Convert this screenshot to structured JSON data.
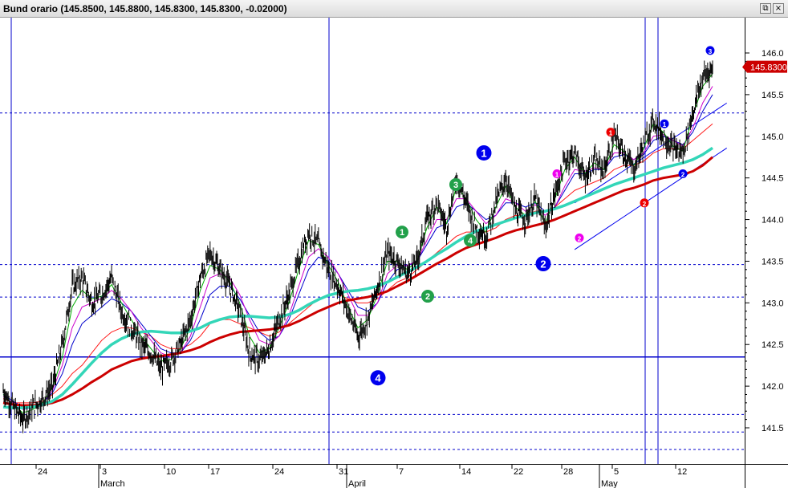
{
  "window": {
    "title": "Bund orario (145.8500, 145.8800, 145.8300, 145.8300, -0.02000)",
    "restore_icon": "restore-window-icon",
    "close_icon": "close-window-icon"
  },
  "chart_data": {
    "type": "line",
    "title": "Bund orario (145.8500, 145.8800, 145.8300, 145.8300, -0.02000)",
    "ylim": [
      141.3,
      146.3
    ],
    "y_ticks": [
      "141.5",
      "142.0",
      "142.5",
      "143.0",
      "143.5",
      "144.0",
      "144.5",
      "145.0",
      "145.5",
      "146.0"
    ],
    "x_day_labels": [
      "24",
      "3",
      "10",
      "17",
      "24",
      "31",
      "7",
      "14",
      "22",
      "28",
      "5",
      "12"
    ],
    "x_month_labels": [
      "March",
      "April",
      "May"
    ],
    "last_price": "145.8300",
    "grid": false,
    "price_series": {
      "name": "",
      "close": [
        141.95,
        141.75,
        141.6,
        141.75,
        141.85,
        142.0,
        142.5,
        143.2,
        143.3,
        143.0,
        143.1,
        143.3,
        142.9,
        142.7,
        142.5,
        142.4,
        142.2,
        142.3,
        142.5,
        142.8,
        143.3,
        143.6,
        143.4,
        143.2,
        142.9,
        142.4,
        142.3,
        142.45,
        142.8,
        143.1,
        143.5,
        143.85,
        143.7,
        143.4,
        143.2,
        142.9,
        142.6,
        142.8,
        143.2,
        143.6,
        143.5,
        143.35,
        143.5,
        144.0,
        144.2,
        143.9,
        144.5,
        144.2,
        143.9,
        143.8,
        144.2,
        144.5,
        144.1,
        144.0,
        144.25,
        143.9,
        144.3,
        144.7,
        144.8,
        144.5,
        144.7,
        144.6,
        145.0,
        144.8,
        144.6,
        144.9,
        145.2,
        145.0,
        144.85,
        144.8,
        145.3,
        145.7,
        145.83
      ]
    },
    "moving_averages": [
      {
        "name": "",
        "color": "#ff1a1a",
        "values": [
          141.85,
          141.8,
          141.8,
          141.8,
          141.82,
          141.9,
          142.0,
          142.15,
          142.25,
          142.4,
          142.55,
          142.65,
          142.7,
          142.7,
          142.65,
          142.6,
          142.5,
          142.45,
          142.45,
          142.5,
          142.6,
          142.75,
          142.8,
          142.8,
          142.75,
          142.7,
          142.65,
          142.6,
          142.65,
          142.75,
          142.85,
          142.95,
          143.05,
          143.1,
          143.1,
          143.05,
          143.0,
          143.0,
          143.05,
          143.15,
          143.25,
          143.3,
          143.4,
          143.5,
          143.6,
          143.7,
          143.8,
          143.85,
          143.85,
          143.85,
          143.9,
          144.0,
          144.05,
          144.05,
          144.1,
          144.1,
          144.15,
          144.25,
          144.35,
          144.4,
          144.45,
          144.5,
          144.6,
          144.65,
          144.65,
          144.7,
          144.8,
          144.85,
          144.85,
          144.85,
          144.95,
          145.05,
          145.15
        ]
      },
      {
        "name": "",
        "color": "#0000cc",
        "values": [
          141.9,
          141.82,
          141.75,
          141.75,
          141.8,
          141.92,
          142.15,
          142.5,
          142.75,
          142.85,
          142.95,
          143.05,
          143.0,
          142.9,
          142.75,
          142.6,
          142.45,
          142.4,
          142.4,
          142.55,
          142.8,
          143.1,
          143.2,
          143.2,
          143.05,
          142.85,
          142.65,
          142.55,
          142.6,
          142.8,
          143.1,
          143.4,
          143.55,
          143.5,
          143.35,
          143.15,
          142.95,
          142.9,
          143.0,
          143.25,
          143.4,
          143.45,
          143.5,
          143.7,
          143.9,
          143.95,
          144.15,
          144.2,
          144.1,
          144.0,
          144.05,
          144.2,
          144.2,
          144.15,
          144.2,
          144.1,
          144.15,
          144.35,
          144.55,
          144.55,
          144.6,
          144.6,
          144.75,
          144.78,
          144.72,
          144.78,
          144.95,
          145.0,
          144.95,
          144.9,
          145.05,
          145.3,
          145.5
        ]
      },
      {
        "name": "",
        "color": "#cc00cc",
        "values": [
          141.88,
          141.8,
          141.72,
          141.74,
          141.8,
          141.95,
          142.25,
          142.7,
          142.95,
          143.0,
          143.05,
          143.15,
          143.05,
          142.9,
          142.7,
          142.55,
          142.4,
          142.35,
          142.4,
          142.6,
          142.95,
          143.3,
          143.35,
          143.3,
          143.1,
          142.8,
          142.55,
          142.5,
          142.6,
          142.85,
          143.2,
          143.55,
          143.65,
          143.55,
          143.35,
          143.1,
          142.85,
          142.85,
          143.0,
          143.35,
          143.45,
          143.45,
          143.5,
          143.75,
          144.0,
          144.0,
          144.25,
          144.25,
          144.1,
          143.95,
          144.05,
          144.25,
          144.2,
          144.1,
          144.18,
          144.05,
          144.15,
          144.4,
          144.6,
          144.58,
          144.62,
          144.6,
          144.8,
          144.8,
          144.72,
          144.8,
          145.0,
          145.02,
          144.95,
          144.88,
          145.1,
          145.4,
          145.6
        ]
      },
      {
        "name": "",
        "color": "#00aa00",
        "values": [
          141.9,
          141.78,
          141.68,
          141.72,
          141.8,
          141.98,
          142.35,
          142.95,
          143.15,
          143.05,
          143.08,
          143.22,
          143.0,
          142.8,
          142.6,
          142.45,
          142.3,
          142.32,
          142.45,
          142.7,
          143.15,
          143.45,
          143.4,
          143.25,
          143.0,
          142.6,
          142.4,
          142.45,
          142.7,
          143.0,
          143.4,
          143.75,
          143.7,
          143.45,
          143.25,
          142.95,
          142.7,
          142.8,
          143.1,
          143.5,
          143.5,
          143.4,
          143.5,
          143.9,
          144.15,
          143.95,
          144.4,
          144.25,
          144.0,
          143.85,
          144.15,
          144.4,
          144.15,
          144.05,
          144.22,
          143.95,
          144.25,
          144.6,
          144.75,
          144.55,
          144.68,
          144.6,
          144.9,
          144.82,
          144.65,
          144.85,
          145.15,
          145.05,
          144.88,
          144.82,
          145.25,
          145.6,
          145.75
        ]
      },
      {
        "name": "",
        "color": "#cc0000",
        "values": [
          141.8,
          141.78,
          141.77,
          141.77,
          141.78,
          141.8,
          141.84,
          141.9,
          141.97,
          142.05,
          142.12,
          142.2,
          142.25,
          142.3,
          142.33,
          142.35,
          142.36,
          142.38,
          142.4,
          142.43,
          142.47,
          142.53,
          142.58,
          142.62,
          142.65,
          142.66,
          142.67,
          142.68,
          142.7,
          142.73,
          142.78,
          142.84,
          142.9,
          142.95,
          143.0,
          143.03,
          143.05,
          143.07,
          143.1,
          143.14,
          143.2,
          143.26,
          143.33,
          143.4,
          143.47,
          143.53,
          143.6,
          143.66,
          143.7,
          143.74,
          143.78,
          143.83,
          143.87,
          143.9,
          143.93,
          143.96,
          144.0,
          144.05,
          144.1,
          144.15,
          144.2,
          144.25,
          144.3,
          144.35,
          144.38,
          144.42,
          144.47,
          144.5,
          144.52,
          144.54,
          144.58,
          144.65,
          144.75
        ]
      },
      {
        "name": "",
        "color": "#33d6b8",
        "values": [
          141.75,
          141.74,
          141.74,
          141.75,
          141.78,
          141.82,
          141.9,
          142.02,
          142.15,
          142.28,
          142.4,
          142.5,
          142.57,
          142.62,
          142.65,
          142.66,
          142.65,
          142.64,
          142.64,
          142.66,
          142.7,
          142.76,
          142.8,
          142.83,
          142.84,
          142.84,
          142.83,
          142.82,
          142.83,
          142.86,
          142.91,
          142.98,
          143.04,
          143.09,
          143.12,
          143.14,
          143.15,
          143.17,
          143.2,
          143.25,
          143.31,
          143.37,
          143.43,
          143.5,
          143.58,
          143.65,
          143.73,
          143.8,
          143.86,
          143.9,
          143.94,
          143.98,
          144.02,
          144.05,
          144.08,
          144.1,
          144.13,
          144.17,
          144.22,
          144.27,
          144.32,
          144.37,
          144.42,
          144.46,
          144.5,
          144.54,
          144.58,
          144.62,
          144.65,
          144.68,
          144.72,
          144.78,
          144.86
        ]
      }
    ],
    "horizontal_levels": [
      145.28,
      143.46,
      143.07,
      142.35,
      141.66,
      141.45,
      141.24
    ],
    "strong_horizontal_level": 142.35,
    "vertical_markers": [
      "first-bar",
      "31",
      "5",
      "12"
    ],
    "annotations": [
      {
        "text": "1",
        "color": "#22a04a",
        "price": 143.85
      },
      {
        "text": "2",
        "color": "#22a04a",
        "price": 143.08
      },
      {
        "text": "3",
        "color": "#22a04a",
        "price": 144.42
      },
      {
        "text": "4",
        "color": "#22a04a",
        "price": 143.75
      },
      {
        "text": "1",
        "color": "#0000ee",
        "price": 144.8
      },
      {
        "text": "2",
        "color": "#0000ee",
        "price": 143.47
      },
      {
        "text": "4",
        "color": "#0000ee",
        "price": 142.1
      },
      {
        "text": "1",
        "color": "#ee00ee",
        "price": 144.55
      },
      {
        "text": "2",
        "color": "#ee00ee",
        "price": 143.78
      },
      {
        "text": "1",
        "color": "#ee0000",
        "price": 145.05
      },
      {
        "text": "2",
        "color": "#ee0000",
        "price": 144.2
      },
      {
        "text": "1",
        "color": "#0000ee",
        "price": 145.15
      },
      {
        "text": "2",
        "color": "#0000ee",
        "price": 144.55
      },
      {
        "text": "3",
        "color": "#0000ee",
        "price": 146.03
      }
    ],
    "channel_lines": [
      {
        "from": [
          58,
          144.2
        ],
        "to": [
          71,
          145.37
        ]
      },
      {
        "from": [
          58,
          143.64
        ],
        "to": [
          71,
          144.83
        ]
      }
    ]
  }
}
